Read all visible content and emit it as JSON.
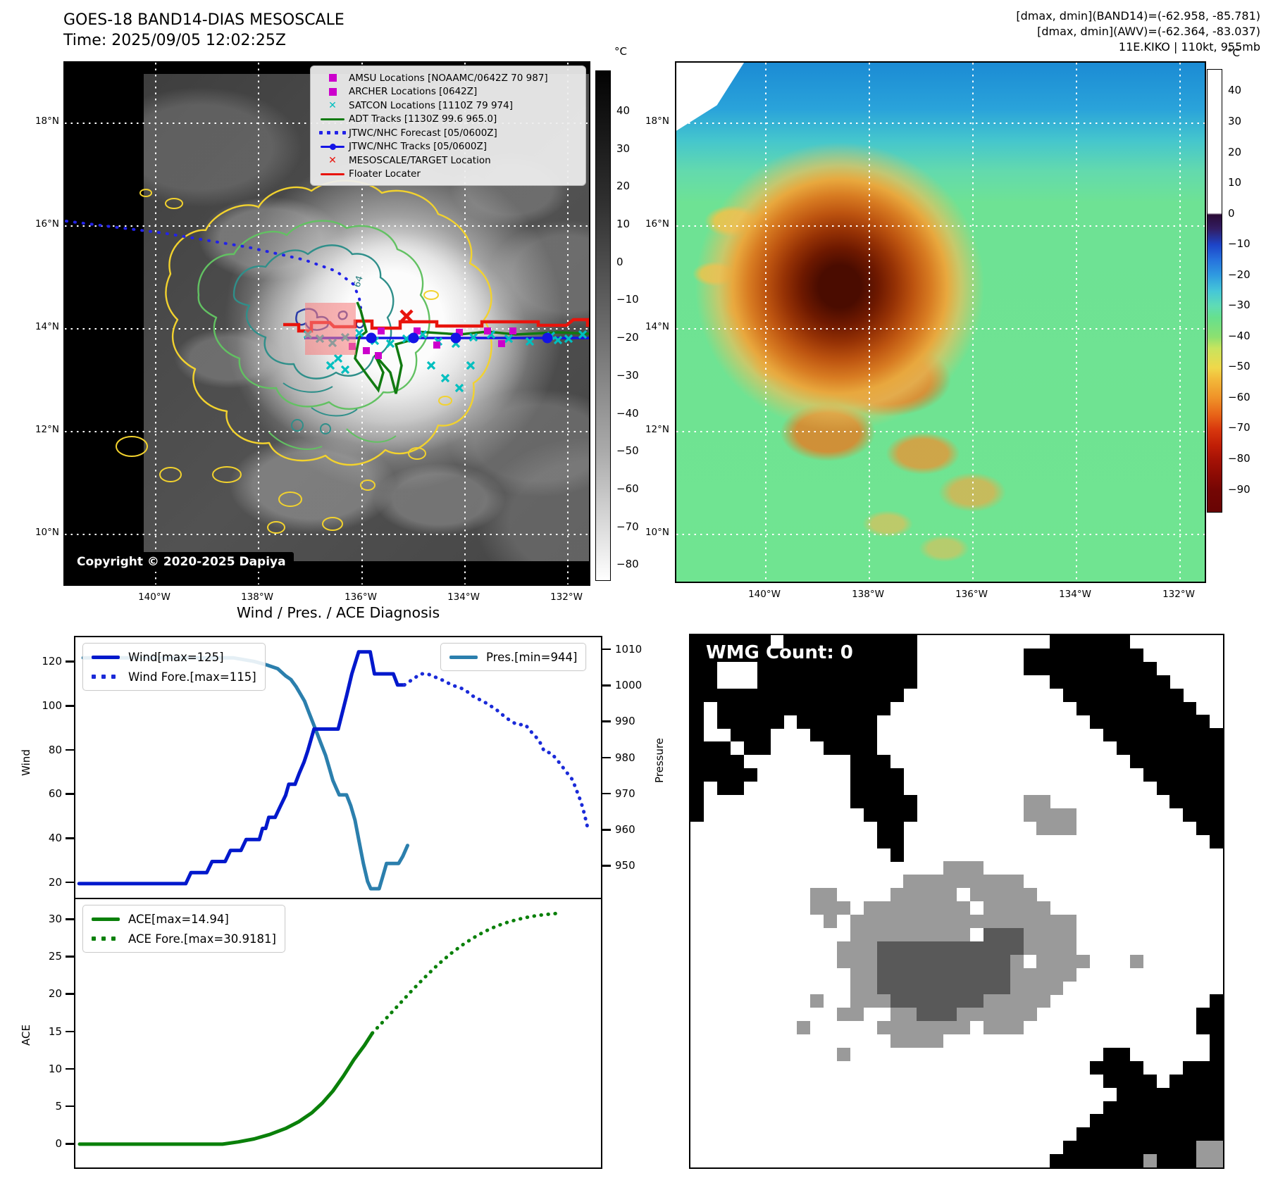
{
  "header": {
    "title_line1": "GOES-18 BAND14-DIAS MESOSCALE",
    "title_line2": "Time: 2025/09/05 12:02:25Z",
    "right_line1": "[dmax, dmin](BAND14)=(-62.958, -85.781)",
    "right_line2": "[dmax, dmin](AWV)=(-62.364, -83.037)",
    "right_line3": "11E.KIKO | 110kt, 955mb"
  },
  "left_map": {
    "legend_items": [
      {
        "marker": "square-magenta",
        "label": "AMSU Locations [NOAAMC/0642Z 70 987]"
      },
      {
        "marker": "square-magenta",
        "label": "ARCHER Locations [0642Z]"
      },
      {
        "marker": "x-cyan",
        "label": "SATCON Locations [1110Z 79 974]"
      },
      {
        "marker": "line-green",
        "label": "ADT Tracks [1130Z 99.6 965.0]"
      },
      {
        "marker": "dotted-blue",
        "label": "JTWC/NHC Forecast [05/0600Z]"
      },
      {
        "marker": "line-dot-blue",
        "label": "JTWC/NHC Tracks [05/0600Z]"
      },
      {
        "marker": "x-red",
        "label": "MESOSCALE/TARGET Location"
      },
      {
        "marker": "line-red",
        "label": "Floater Locater"
      }
    ],
    "copyright": "Copyright © 2020-2025 Dapiya",
    "lat_labels": [
      "18°N",
      "16°N",
      "14°N",
      "12°N",
      "10°N"
    ],
    "lon_labels": [
      "140°W",
      "138°W",
      "136°W",
      "134°W",
      "132°W"
    ],
    "contour_label": "64",
    "colorbar": {
      "unit": "°C",
      "ticks": [
        40,
        30,
        20,
        10,
        0,
        -10,
        -20,
        -30,
        -40,
        -50,
        -60,
        -70,
        -80
      ]
    },
    "overlay": {
      "satcon_x_marks": [
        [
          345,
          386
        ],
        [
          362,
          392
        ],
        [
          380,
          398
        ],
        [
          398,
          390
        ],
        [
          418,
          384
        ],
        [
          440,
          395
        ],
        [
          462,
          399
        ],
        [
          485,
          392
        ],
        [
          508,
          386
        ],
        [
          530,
          396
        ],
        [
          555,
          399
        ],
        [
          580,
          390
        ],
        [
          605,
          386
        ],
        [
          630,
          392
        ],
        [
          660,
          396
        ],
        [
          690,
          388
        ],
        [
          715,
          392
        ],
        [
          735,
          386
        ],
        [
          388,
          420
        ],
        [
          398,
          436
        ],
        [
          377,
          430
        ],
        [
          520,
          430
        ],
        [
          540,
          448
        ],
        [
          560,
          462
        ],
        [
          576,
          430
        ],
        [
          700,
          394
        ]
      ],
      "amsu_squares": [
        [
          408,
          403
        ],
        [
          428,
          409
        ],
        [
          449,
          381
        ],
        [
          500,
          381
        ],
        [
          528,
          401
        ],
        [
          560,
          383
        ],
        [
          600,
          381
        ],
        [
          620,
          399
        ],
        [
          636,
          381
        ],
        [
          445,
          416
        ]
      ],
      "jtwc_track_dots": [
        [
          435,
          391
        ],
        [
          495,
          391
        ],
        [
          555,
          391
        ],
        [
          685,
          391
        ]
      ],
      "target_x": [
        485,
        360
      ]
    }
  },
  "right_map": {
    "lat_labels": [
      "18°N",
      "16°N",
      "14°N",
      "12°N",
      "10°N"
    ],
    "lon_labels": [
      "140°W",
      "138°W",
      "136°W",
      "134°W",
      "132°W"
    ],
    "colorbar": {
      "unit": "°C",
      "ticks": [
        40,
        30,
        20,
        10,
        0,
        -10,
        -20,
        -30,
        -40,
        -50,
        -60,
        -70,
        -80,
        -90
      ]
    }
  },
  "diagnosis": {
    "title": "Wind / Pres. / ACE Diagnosis"
  },
  "wmg": {
    "title": "WMG Count: 0",
    "palette": {
      "B": "#000000",
      "g": "#9a9a9a",
      "d": "#595959",
      ".": "#ffffff"
    },
    "rows": [
      "BBBBBB.BBBBBBBBBB..........BBBBBB.......",
      "BBBBBBBBBBBBBBBBB........BBBBBBBBB......",
      "BB...BBBBBBBBBBBB........BBBBBBBBBB.....",
      "BB...BBBBBBBBBBBB..........BBBBBBBBB....",
      "BBBBBBBBBBBBBBBB............BBBBBBBBB...",
      "B.BBBBBBBBBBBBB..............BBBBBBBBB..",
      "B.BBBBB.BBBBBB................BBBBBBBBB.",
      "B..BBB...BBBBB.................BBBBBBBBB",
      "BBB.BB....BBBB..................BBBBBBBB",
      "BBBB........BBB..................BBBBBBB",
      "BBBBB.......BBBB..................BBBBBB",
      "B.BB........BBBB...................BBBBB",
      "B...........BBBBB........gg.........BBBB",
      "B............BBBB........gggg........BBB",
      "..............BB..........ggg.........BB",
      "..............BB.......................B",
      "...............B........................",
      "...................ggg..................",
      "................ggggggggg...............",
      ".........gg....ggggg.ggggg..............",
      ".........ggg.gggggggg.ggggg.............",
      "..........g.ggggggggggggggggg...........",
      "............ggggggggg.dddgggg...........",
      "...........gggdddddddddddgggg...........",
      "...........gggddddddddddg.gggg...g......",
      "............ggddddddddddggggg...........",
      "............ggddddddddddgggg............",
      ".........g..gggdddddddggggg............B",
      "...........gg..ggdddgggggg............BB",
      "........g.....ggggggg.ggg.............BB",
      "...............gggg....................B",
      "...........g...................BB......B",
      "..............................BBBB...BBB",
      "...............................BBBB.BBBB",
      "................................BBBBBBBB",
      "...............................BBBBBBBBB",
      "..............................BBBBBBBBBB",
      ".............................BBBBBBBBBBB",
      "............................BBBBBBBBBBgg",
      "...........................BBBBBBBgBBBgg"
    ]
  },
  "chart_data": [
    {
      "type": "line",
      "title": "Wind / Pres. / ACE Diagnosis",
      "ylabel": "Wind",
      "y2label": "Pressure",
      "yticks": [
        20,
        40,
        60,
        80,
        100,
        120
      ],
      "y2ticks": [
        950,
        960,
        970,
        980,
        990,
        1000,
        1010
      ],
      "ylim": [
        13.6,
        131.6
      ],
      "y2lim": [
        941.7,
        1013.7
      ],
      "legend": [
        {
          "label": "Wind[max=125]",
          "style": "solid",
          "color": "#0018cc"
        },
        {
          "label": "Wind Fore.[max=115]",
          "style": "dotted",
          "color": "#1a2ad8"
        },
        {
          "label": "Pres.[min=944]",
          "style": "solid",
          "color": "#2b7fad"
        }
      ],
      "series": [
        {
          "name": "wind_observed",
          "axis": "y",
          "style": "solid",
          "color": "#0018cc",
          "points": [
            [
              0.7,
              20
            ],
            [
              21,
              20
            ],
            [
              22,
              25
            ],
            [
              25,
              25
            ],
            [
              26,
              30
            ],
            [
              28.5,
              30
            ],
            [
              29.5,
              35
            ],
            [
              31.5,
              35
            ],
            [
              32.5,
              40
            ],
            [
              35,
              40
            ],
            [
              35.6,
              45
            ],
            [
              36.2,
              45
            ],
            [
              36.8,
              50
            ],
            [
              38,
              50
            ],
            [
              39,
              55
            ],
            [
              40,
              60
            ],
            [
              40.6,
              65
            ],
            [
              41.8,
              65
            ],
            [
              42.6,
              70
            ],
            [
              43.5,
              75
            ],
            [
              44.2,
              80
            ],
            [
              45.4,
              90
            ],
            [
              50,
              90
            ],
            [
              51.6,
              105
            ],
            [
              52.6,
              115
            ],
            [
              53.9,
              125
            ],
            [
              56.1,
              125
            ],
            [
              56.9,
              115
            ],
            [
              60.5,
              115
            ],
            [
              61.3,
              110
            ],
            [
              62.6,
              110
            ]
          ]
        },
        {
          "name": "wind_forecast",
          "axis": "y",
          "style": "dotted",
          "color": "#1a2ad8",
          "points": [
            [
              62.6,
              110
            ],
            [
              65.7,
              115
            ],
            [
              67,
              115
            ],
            [
              70,
              112
            ],
            [
              71.6,
              110
            ],
            [
              74,
              108
            ],
            [
              75.6,
              105
            ],
            [
              78,
              102
            ],
            [
              80,
              99
            ],
            [
              82,
              95
            ],
            [
              84,
              92
            ],
            [
              85.6,
              92
            ],
            [
              87,
              88
            ],
            [
              88.2,
              85
            ],
            [
              89.2,
              80
            ],
            [
              90.6,
              79
            ],
            [
              92,
              75
            ],
            [
              93.6,
              70
            ],
            [
              94.6,
              67
            ],
            [
              95.4,
              62
            ],
            [
              96.2,
              57
            ],
            [
              96.8,
              52
            ],
            [
              97.4,
              46
            ]
          ]
        },
        {
          "name": "pressure_observed",
          "axis": "y2",
          "style": "solid",
          "color": "#2b7fad",
          "points": [
            [
              1.5,
              1008
            ],
            [
              30,
              1008
            ],
            [
              34,
              1007
            ],
            [
              36.5,
              1006
            ],
            [
              38.5,
              1005
            ],
            [
              40,
              1003
            ],
            [
              41,
              1002
            ],
            [
              42,
              1000
            ],
            [
              42.8,
              998
            ],
            [
              43.6,
              996
            ],
            [
              44.4,
              993
            ],
            [
              45.2,
              990
            ],
            [
              46,
              987
            ],
            [
              46.8,
              984
            ],
            [
              47.6,
              981
            ],
            [
              48.4,
              977
            ],
            [
              49,
              974
            ],
            [
              49.6,
              972
            ],
            [
              50.2,
              970
            ],
            [
              51.6,
              970
            ],
            [
              52.4,
              967
            ],
            [
              53.2,
              963
            ],
            [
              54,
              957
            ],
            [
              54.8,
              951
            ],
            [
              55.6,
              946
            ],
            [
              56.2,
              944
            ],
            [
              57.8,
              944
            ],
            [
              58.4,
              947
            ],
            [
              59.2,
              951
            ],
            [
              61.5,
              951
            ],
            [
              62.3,
              953
            ],
            [
              63.2,
              956
            ]
          ]
        }
      ]
    },
    {
      "type": "line",
      "title": "ACE accumulation",
      "ylabel": "ACE",
      "yticks": [
        0,
        5,
        10,
        15,
        20,
        25,
        30
      ],
      "ylim": [
        -3,
        32.8
      ],
      "legend": [
        {
          "label": "ACE[max=14.94]",
          "style": "solid",
          "color": "#0a800a"
        },
        {
          "label": "ACE Fore.[max=30.9181]",
          "style": "dotted",
          "color": "#0a800a"
        }
      ],
      "series": [
        {
          "name": "ace_observed",
          "axis": "y",
          "style": "solid",
          "color": "#0a800a",
          "points": [
            [
              0.8,
              0.1
            ],
            [
              28,
              0.1
            ],
            [
              31,
              0.4
            ],
            [
              34,
              0.8
            ],
            [
              37,
              1.4
            ],
            [
              40,
              2.2
            ],
            [
              42.5,
              3.1
            ],
            [
              45,
              4.3
            ],
            [
              47,
              5.6
            ],
            [
              49,
              7.2
            ],
            [
              51,
              9.2
            ],
            [
              53,
              11.4
            ],
            [
              55,
              13.3
            ],
            [
              56.5,
              14.94
            ]
          ]
        },
        {
          "name": "ace_forecast",
          "axis": "y",
          "style": "dotted",
          "color": "#0a800a",
          "points": [
            [
              56.5,
              14.94
            ],
            [
              59,
              16.8
            ],
            [
              61.5,
              18.7
            ],
            [
              64,
              20.6
            ],
            [
              66.5,
              22.4
            ],
            [
              69,
              24.1
            ],
            [
              71.5,
              25.6
            ],
            [
              74,
              26.9
            ],
            [
              76.5,
              28
            ],
            [
              79,
              28.9
            ],
            [
              81.5,
              29.6
            ],
            [
              84,
              30.1
            ],
            [
              86.5,
              30.5
            ],
            [
              89,
              30.75
            ],
            [
              91.5,
              30.92
            ]
          ]
        }
      ]
    }
  ]
}
